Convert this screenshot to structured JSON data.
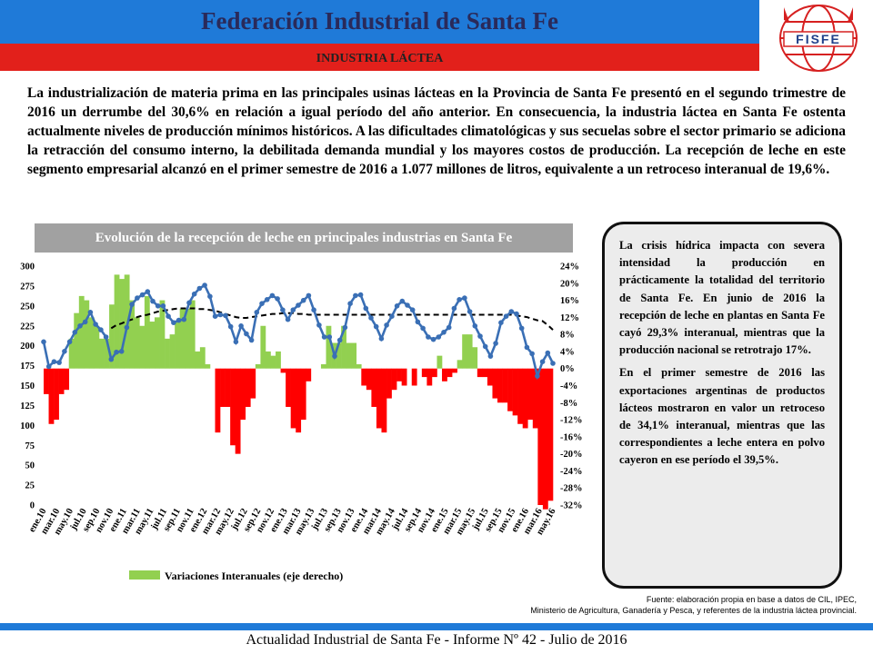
{
  "header": {
    "title": "Federación Industrial de Santa Fe",
    "section": "INDUSTRIA LÁCTEA",
    "logo_text": "FISFE",
    "colors": {
      "blue": "#1f7ad8",
      "red": "#e2201b"
    }
  },
  "intro": "La industrialización de materia prima en las principales usinas lácteas en la Provincia de Santa Fe presentó en el segundo trimestre de 2016 un derrumbe del 30,6% en relación a igual período del año anterior. En consecuencia, la industria láctea en Santa Fe ostenta actualmente niveles de producción mínimos históricos. A las dificultades climatológicas y sus secuelas sobre el sector primario se adiciona la retracción del consumo interno, la debilitada demanda mundial y los mayores costos de producción. La recepción de leche en este segmento empresarial alcanzó en el primer semestre de 2016 a 1.077 millones de litros, equivalente a un retroceso interanual de 19,6%.",
  "callout": {
    "p1": "La crisis hídrica impacta con severa intensidad la producción en prácticamente la totalidad del territorio de Santa Fe. En junio de 2016 la recepción de leche en plantas en Santa Fe cayó 29,3% interanual, mientras que la producción nacional se retrotrajo 17%.",
    "p2": "En el primer semestre de 2016 las exportaciones argentinas de productos lácteos mostraron en valor un retroceso de 34,1% interanual, mientras que las correspondientes a leche entera en polvo cayeron en ese período el 39,5%."
  },
  "source": {
    "line1": "Fuente: elaboración propia en base a datos de CIL, IPEC,",
    "line2": "Ministerio de Agricultura, Ganadería y Pesca, y referentes de la industria láctea provincial."
  },
  "footer": "Actualidad Industrial de Santa Fe - Informe Nº 42 - Julio de 2016",
  "chart_data": {
    "type": "bar+line",
    "title": "Evolución de la recepción de leche  en principales industrias en Santa Fe",
    "x_labels": [
      "ene.10",
      "mar.10",
      "may.10",
      "jul.10",
      "sep.10",
      "nov.10",
      "ene.11",
      "mar.11",
      "may.11",
      "jul.11",
      "sep.11",
      "nov.11",
      "ene.12",
      "mar.12",
      "may.12",
      "jul.12",
      "sep.12",
      "nov.12",
      "ene.13",
      "mar.13",
      "may.13",
      "jul.13",
      "sep.13",
      "nov.13",
      "ene.14",
      "mar.14",
      "may.14",
      "jul.14",
      "sep.14",
      "nov.14",
      "ene.15",
      "mar.15",
      "may.15",
      "jul.15",
      "sep.15",
      "nov.15",
      "ene.16",
      "mar.16",
      "may.16"
    ],
    "y_left": {
      "min": 0,
      "max": 300,
      "ticks": [
        0,
        25,
        50,
        75,
        100,
        125,
        150,
        175,
        200,
        225,
        250,
        275,
        300
      ]
    },
    "y_right": {
      "min": -32,
      "max": 24,
      "step": 4,
      "ticks": [
        "24%",
        "20%",
        "16%",
        "12%",
        "8%",
        "4%",
        "0%",
        "-4%",
        "-8%",
        "-12%",
        "-16%",
        "-20%",
        "-24%",
        "-28%",
        "-32%"
      ]
    },
    "bars_pct": [
      -6,
      -13,
      -12,
      -6,
      -5,
      7,
      13,
      17,
      16,
      12,
      10,
      7,
      7,
      15,
      22,
      21,
      22,
      16,
      12,
      10,
      17,
      11,
      12,
      16,
      7,
      8,
      11,
      14,
      14,
      16,
      4,
      5,
      1,
      0,
      -15,
      -9,
      -9,
      -18,
      -20,
      -12,
      -9,
      -7,
      1,
      10,
      4,
      3,
      4,
      -1,
      -9,
      -14,
      -15,
      -12,
      -3,
      0,
      0,
      1,
      10,
      6,
      6,
      10,
      6,
      6,
      1,
      -4,
      -5,
      -9,
      -14,
      -15,
      -7,
      -5,
      -3,
      -4,
      0,
      -4,
      0,
      -2,
      -4,
      -2,
      3,
      -3,
      -2,
      -1,
      2,
      8,
      8,
      5,
      -2,
      -2,
      -4,
      -7,
      -8,
      -8,
      -10,
      -11,
      -13,
      -14,
      -12,
      -14,
      -32,
      -33,
      -31
    ],
    "line_values": [
      205,
      174,
      180,
      179,
      193,
      205,
      217,
      225,
      230,
      242,
      227,
      220,
      211,
      183,
      192,
      193,
      223,
      252,
      260,
      264,
      268,
      256,
      250,
      250,
      237,
      229,
      232,
      233,
      254,
      265,
      272,
      276,
      262,
      237,
      239,
      238,
      224,
      205,
      225,
      215,
      207,
      242,
      253,
      258,
      263,
      259,
      245,
      233,
      245,
      251,
      257,
      263,
      245,
      226,
      211,
      211,
      187,
      207,
      223,
      253,
      263,
      264,
      247,
      235,
      224,
      209,
      226,
      237,
      250,
      256,
      251,
      245,
      230,
      222,
      211,
      208,
      211,
      217,
      223,
      247,
      258,
      260,
      243,
      225,
      212,
      199,
      187,
      203,
      229,
      237,
      243,
      240,
      222,
      198,
      190,
      162,
      180,
      191,
      178
    ],
    "trend_values": [
      null,
      null,
      null,
      null,
      null,
      null,
      null,
      null,
      null,
      null,
      null,
      null,
      null,
      222,
      226,
      228,
      231,
      233,
      236,
      238,
      239,
      241,
      243,
      244,
      245,
      246,
      247,
      247,
      247,
      247,
      246,
      246,
      245,
      244,
      242,
      240,
      238,
      236,
      235,
      235,
      236,
      237,
      238,
      239,
      240,
      240,
      241,
      241,
      241,
      240,
      240,
      239,
      239,
      239,
      239,
      239,
      239,
      239,
      239,
      239,
      239,
      239,
      239,
      239,
      239,
      239,
      239,
      239,
      239,
      239,
      239,
      239,
      239,
      239,
      239,
      239,
      239,
      239,
      239,
      239,
      239,
      239,
      239,
      239,
      239,
      239,
      239,
      239,
      239,
      239,
      239,
      238,
      237,
      236,
      234,
      232,
      231,
      226,
      220
    ],
    "legend": "Variaciones Interanuales (eje derecho)",
    "colors": {
      "positive_bar": "#92d050",
      "negative_bar": "#ff0000",
      "line": "#3a6fb5",
      "trend": "#000000"
    }
  }
}
